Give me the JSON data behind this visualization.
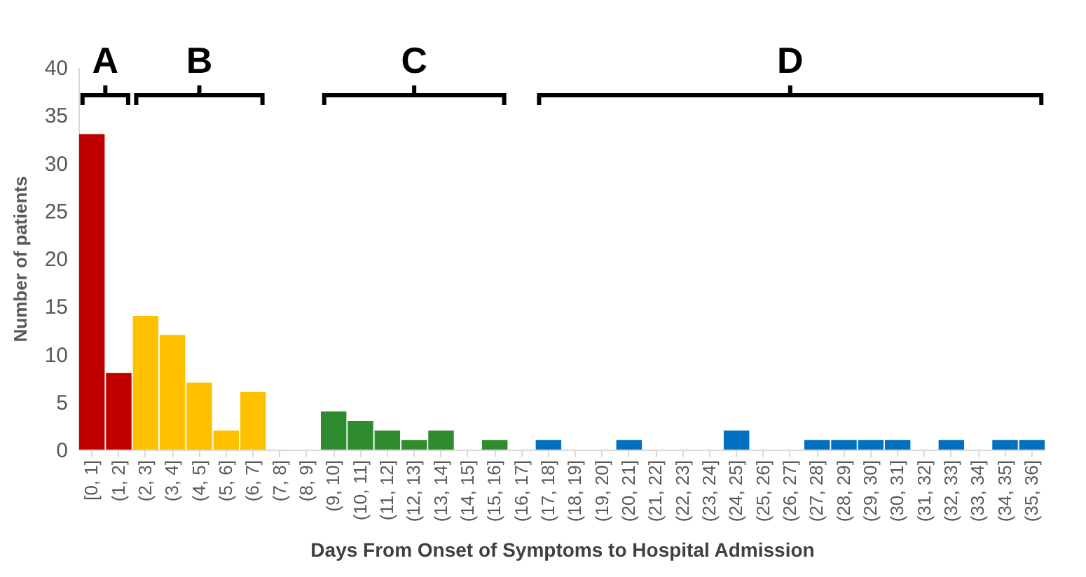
{
  "chart_data": {
    "type": "bar",
    "xlabel": "Days From Onset of Symptoms to Hospital Admission",
    "ylabel": "Number of patients",
    "categories": [
      "[0, 1]",
      "(1, 2]",
      "(2, 3]",
      "(3, 4]",
      "(4, 5]",
      "(5, 6]",
      "(6, 7]",
      "(7, 8]",
      "(8, 9]",
      "(9, 10]",
      "(10, 11]",
      "(11, 12]",
      "(12, 13]",
      "(13, 14]",
      "(14, 15]",
      "(15, 16]",
      "(16, 17]",
      "(17, 18]",
      "(18, 19]",
      "(19, 20]",
      "(20, 21]",
      "(21, 22]",
      "(22, 23]",
      "(23, 24]",
      "(24, 25]",
      "(25, 26]",
      "(26, 27]",
      "(27, 28]",
      "(28, 29]",
      "(29, 30]",
      "(30, 31]",
      "(31, 32]",
      "(32, 33]",
      "(33, 34]",
      "(34, 35]",
      "(35, 36]"
    ],
    "values": [
      33,
      8,
      14,
      12,
      7,
      2,
      6,
      0,
      0,
      4,
      3,
      2,
      1,
      2,
      0,
      1,
      0,
      1,
      0,
      0,
      1,
      0,
      0,
      0,
      2,
      0,
      0,
      1,
      1,
      1,
      1,
      0,
      1,
      0,
      1,
      1
    ],
    "colors": [
      "#c00000",
      "#c00000",
      "#ffc000",
      "#ffc000",
      "#ffc000",
      "#ffc000",
      "#ffc000",
      null,
      null,
      "#2e8b2e",
      "#2e8b2e",
      "#2e8b2e",
      "#2e8b2e",
      "#2e8b2e",
      null,
      "#2e8b2e",
      null,
      "#0070c0",
      null,
      null,
      "#0070c0",
      null,
      null,
      null,
      "#0070c0",
      null,
      null,
      "#0070c0",
      "#0070c0",
      "#0070c0",
      "#0070c0",
      null,
      "#0070c0",
      null,
      "#0070c0",
      "#0070c0"
    ],
    "ylim": [
      0,
      40
    ],
    "yticks": [
      0,
      5,
      10,
      15,
      20,
      25,
      30,
      35,
      40
    ],
    "grid": false,
    "annotations": [
      "A",
      "B",
      "C",
      "D"
    ]
  }
}
